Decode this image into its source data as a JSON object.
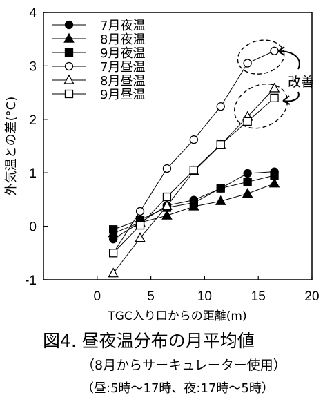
{
  "chart_data": {
    "type": "line",
    "xlabel": "TGC入り口からの距離(m)",
    "ylabel": "外気温との差(°C)",
    "xlim": [
      -5,
      20
    ],
    "ylim": [
      -1,
      4
    ],
    "xticks": [
      0,
      5,
      10,
      15,
      20
    ],
    "yticks": [
      -1,
      0,
      1,
      2,
      3,
      4
    ],
    "grid": false,
    "legend_position": "top-left",
    "series": [
      {
        "name": "7月夜温",
        "marker": "filled-circle",
        "x": [
          1.5,
          4,
          6.5,
          9,
          11.5,
          14,
          16.5
        ],
        "y": [
          -0.24,
          0.07,
          0.39,
          0.49,
          0.71,
          0.99,
          1.02
        ]
      },
      {
        "name": "8月夜温",
        "marker": "filled-triangle",
        "x": [
          1.5,
          4,
          6.5,
          9,
          11.5,
          14,
          16.5
        ],
        "y": [
          -0.13,
          0.07,
          0.2,
          0.37,
          0.47,
          0.61,
          0.8
        ]
      },
      {
        "name": "9月夜温",
        "marker": "filled-square",
        "x": [
          1.5,
          4,
          6.5,
          9,
          11.5,
          14,
          16.5
        ],
        "y": [
          -0.06,
          0.12,
          0.35,
          0.44,
          0.71,
          0.83,
          0.95
        ]
      },
      {
        "name": "7月昼温",
        "marker": "open-circle",
        "x": [
          1.5,
          4,
          6.5,
          9,
          11.5,
          14,
          16.5
        ],
        "y": [
          -0.5,
          0.28,
          1.08,
          1.62,
          2.24,
          3.05,
          3.28
        ]
      },
      {
        "name": "8月昼温",
        "marker": "open-triangle",
        "x": [
          1.5,
          4,
          6.5,
          9,
          11.5,
          14,
          16.5
        ],
        "y": [
          -0.88,
          -0.22,
          0.38,
          1.03,
          1.52,
          2.05,
          2.58
        ]
      },
      {
        "name": "9月昼温",
        "marker": "open-square",
        "x": [
          1.5,
          4,
          6.5,
          9,
          11.5,
          14,
          16.5
        ],
        "y": [
          -0.5,
          0.02,
          0.55,
          1.05,
          1.53,
          1.96,
          2.4
        ]
      }
    ],
    "annotations": [
      {
        "text": "改善",
        "target": "7月昼温 and 8月昼温 / 9月昼温 at 14–16.5 m (dashed ellipses)"
      }
    ]
  },
  "caption": {
    "title": "図4. 昼夜温分布の月平均値",
    "note1": "（8月からサーキュレーター使用）",
    "note2": "（昼:5時〜17時、夜:17時〜5時）"
  }
}
